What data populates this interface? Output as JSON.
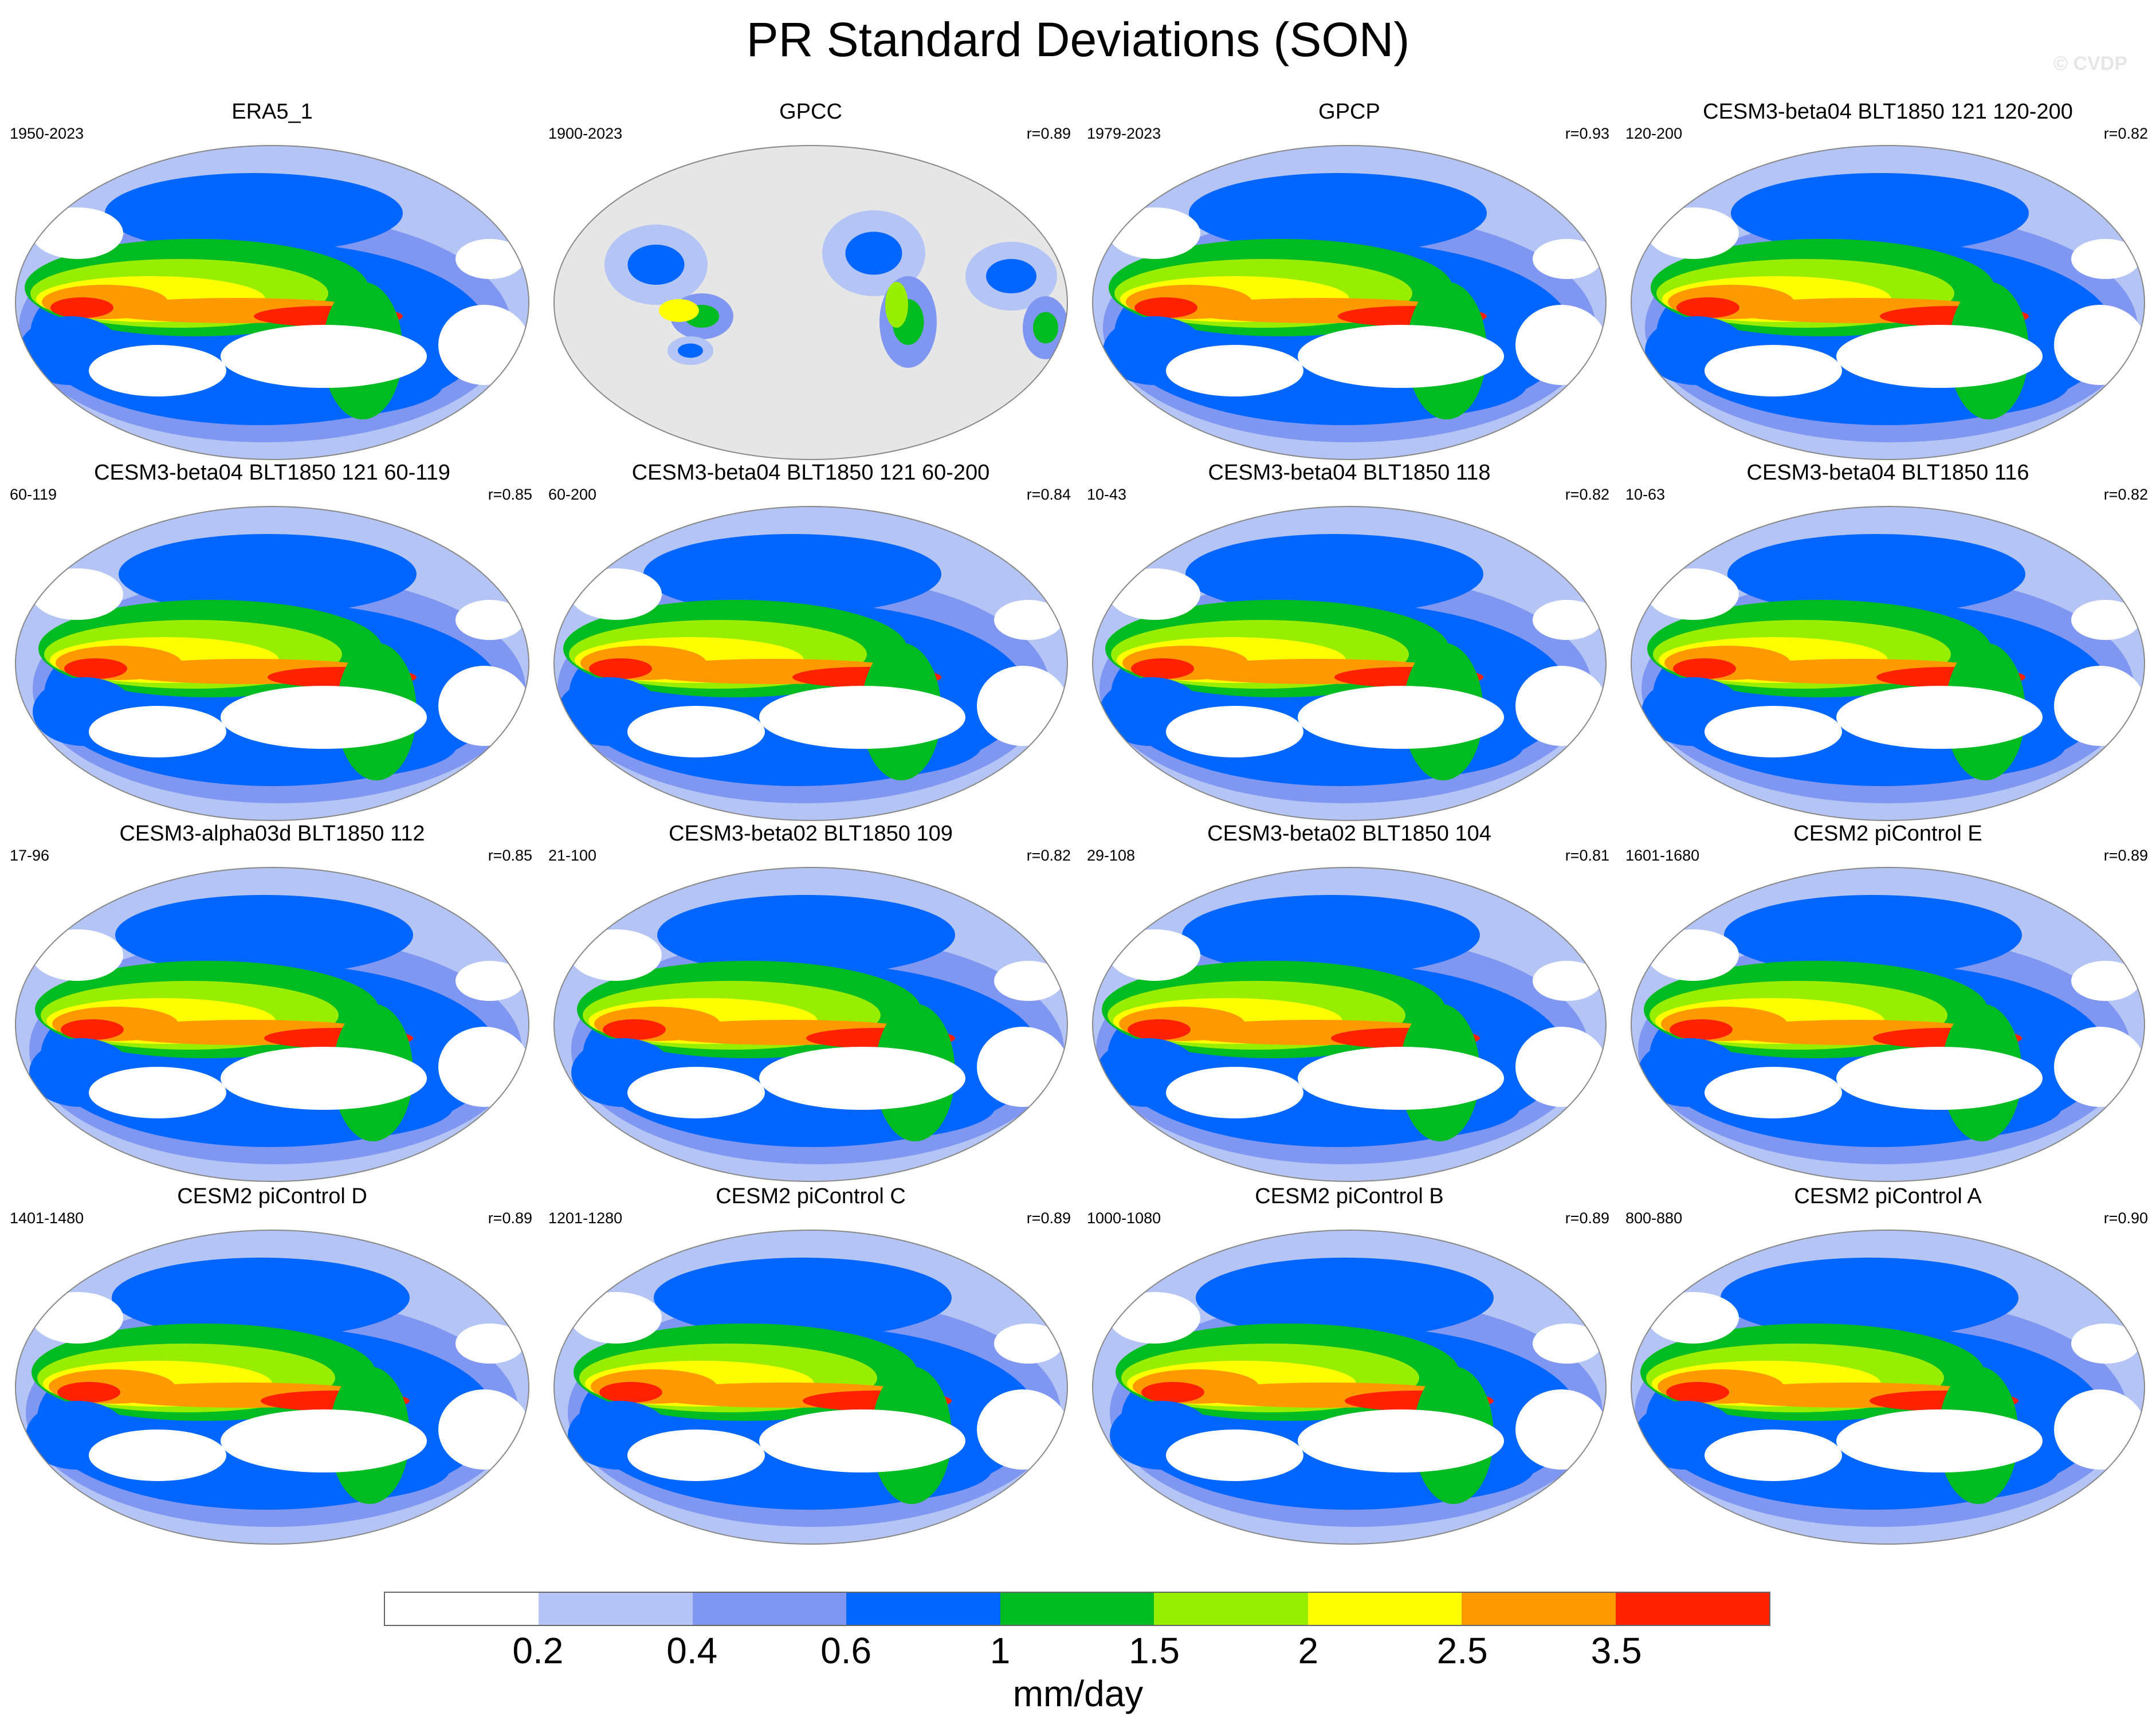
{
  "title": "PR Standard Deviations (SON)",
  "watermark": "© CVDP",
  "units": "mm/day",
  "colorbar": {
    "colors": [
      "#ffffff",
      "#b3c4f5",
      "#8097f2",
      "#0066ff",
      "#00bb22",
      "#99ee00",
      "#ffff00",
      "#ff9900",
      "#ff2200"
    ],
    "labels": [
      "0.2",
      "0.4",
      "0.6",
      "1",
      "1.5",
      "2",
      "2.5",
      "3.5"
    ]
  },
  "panels": [
    {
      "title": "ERA5_1",
      "years": "1950-2023",
      "corr": ""
    },
    {
      "title": "GPCC",
      "years": "1900-2023",
      "corr": "r=0.89",
      "mask": "land"
    },
    {
      "title": "GPCP",
      "years": "1979-2023",
      "corr": "r=0.93"
    },
    {
      "title": "CESM3-beta04 BLT1850 121 120-200",
      "years": "120-200",
      "corr": "r=0.82"
    },
    {
      "title": "CESM3-beta04 BLT1850 121 60-119",
      "years": "60-119",
      "corr": "r=0.85"
    },
    {
      "title": "CESM3-beta04 BLT1850 121 60-200",
      "years": "60-200",
      "corr": "r=0.84"
    },
    {
      "title": "CESM3-beta04 BLT1850 118",
      "years": "10-43",
      "corr": "r=0.82"
    },
    {
      "title": "CESM3-beta04 BLT1850 116",
      "years": "10-63",
      "corr": "r=0.82"
    },
    {
      "title": "CESM3-alpha03d BLT1850 112",
      "years": "17-96",
      "corr": "r=0.85"
    },
    {
      "title": "CESM3-beta02 BLT1850 109",
      "years": "21-100",
      "corr": "r=0.82"
    },
    {
      "title": "CESM3-beta02 BLT1850 104",
      "years": "29-108",
      "corr": "r=0.81"
    },
    {
      "title": "CESM2 piControl E",
      "years": "1601-1680",
      "corr": "r=0.89"
    },
    {
      "title": "CESM2 piControl D",
      "years": "1401-1480",
      "corr": "r=0.89"
    },
    {
      "title": "CESM2 piControl C",
      "years": "1201-1280",
      "corr": "r=0.89"
    },
    {
      "title": "CESM2 piControl B",
      "years": "1000-1080",
      "corr": "r=0.89"
    },
    {
      "title": "CESM2 piControl A",
      "years": "800-880",
      "corr": "r=0.90"
    }
  ]
}
